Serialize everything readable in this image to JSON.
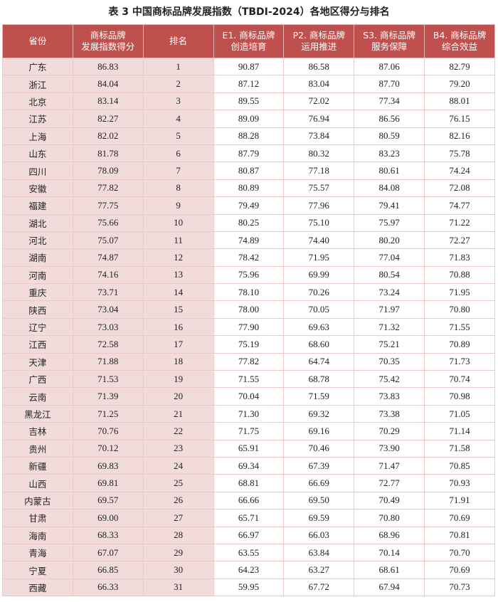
{
  "title": "表 3 中国商标品牌发展指数（TBDI-2024）各地区得分与排名",
  "table": {
    "columns": [
      [
        "省份"
      ],
      [
        "商标品牌",
        "发展指数得分"
      ],
      [
        "排名"
      ],
      [
        "E1. 商标品牌",
        "创造培育"
      ],
      [
        "P2. 商标品牌",
        "运用推进"
      ],
      [
        "S3. 商标品牌",
        "服务保障"
      ],
      [
        "B4. 商标品牌",
        "综合效益"
      ]
    ],
    "rows": [
      [
        "广东",
        "86.83",
        "1",
        "90.87",
        "86.58",
        "87.06",
        "82.79"
      ],
      [
        "浙江",
        "84.04",
        "2",
        "87.12",
        "83.04",
        "87.70",
        "79.20"
      ],
      [
        "北京",
        "83.14",
        "3",
        "89.55",
        "72.02",
        "77.34",
        "88.01"
      ],
      [
        "江苏",
        "82.27",
        "4",
        "89.09",
        "76.94",
        "86.56",
        "76.15"
      ],
      [
        "上海",
        "82.02",
        "5",
        "88.28",
        "73.84",
        "80.59",
        "82.16"
      ],
      [
        "山东",
        "81.78",
        "6",
        "87.79",
        "80.32",
        "83.23",
        "75.78"
      ],
      [
        "四川",
        "78.09",
        "7",
        "80.87",
        "77.18",
        "80.61",
        "74.24"
      ],
      [
        "安徽",
        "77.82",
        "8",
        "80.89",
        "75.57",
        "84.08",
        "72.08"
      ],
      [
        "福建",
        "77.75",
        "9",
        "79.49",
        "77.96",
        "79.41",
        "74.77"
      ],
      [
        "湖北",
        "75.66",
        "10",
        "80.25",
        "75.10",
        "75.97",
        "71.22"
      ],
      [
        "河北",
        "75.07",
        "11",
        "74.89",
        "74.40",
        "80.20",
        "72.27"
      ],
      [
        "湖南",
        "74.87",
        "12",
        "78.42",
        "71.95",
        "77.04",
        "71.83"
      ],
      [
        "河南",
        "74.16",
        "13",
        "75.96",
        "69.99",
        "80.54",
        "70.88"
      ],
      [
        "重庆",
        "73.71",
        "14",
        "78.10",
        "70.26",
        "73.24",
        "71.95"
      ],
      [
        "陕西",
        "73.04",
        "15",
        "78.00",
        "70.05",
        "71.97",
        "70.80"
      ],
      [
        "辽宁",
        "73.03",
        "16",
        "77.90",
        "69.63",
        "71.32",
        "71.55"
      ],
      [
        "江西",
        "72.58",
        "17",
        "75.19",
        "68.60",
        "75.21",
        "70.89"
      ],
      [
        "天津",
        "71.88",
        "18",
        "77.82",
        "64.74",
        "70.35",
        "71.73"
      ],
      [
        "广西",
        "71.53",
        "19",
        "71.55",
        "68.78",
        "75.42",
        "70.74"
      ],
      [
        "云南",
        "71.39",
        "20",
        "70.04",
        "71.59",
        "73.83",
        "70.98"
      ],
      [
        "黑龙江",
        "71.25",
        "21",
        "71.30",
        "69.32",
        "73.38",
        "71.05"
      ],
      [
        "吉林",
        "70.76",
        "22",
        "71.75",
        "69.16",
        "70.29",
        "71.14"
      ],
      [
        "贵州",
        "70.12",
        "23",
        "65.91",
        "70.46",
        "73.90",
        "71.58"
      ],
      [
        "新疆",
        "69.83",
        "24",
        "69.34",
        "67.39",
        "71.47",
        "70.85"
      ],
      [
        "山西",
        "69.81",
        "25",
        "68.81",
        "66.69",
        "72.77",
        "70.93"
      ],
      [
        "内蒙古",
        "69.57",
        "26",
        "66.66",
        "69.50",
        "70.49",
        "71.91"
      ],
      [
        "甘肃",
        "69.00",
        "27",
        "65.71",
        "69.59",
        "70.80",
        "70.69"
      ],
      [
        "海南",
        "68.33",
        "28",
        "66.97",
        "66.03",
        "68.96",
        "70.81"
      ],
      [
        "青海",
        "67.07",
        "29",
        "63.55",
        "63.84",
        "70.14",
        "70.70"
      ],
      [
        "宁夏",
        "66.85",
        "30",
        "64.23",
        "63.27",
        "68.61",
        "70.69"
      ],
      [
        "西藏",
        "66.33",
        "31",
        "59.95",
        "67.72",
        "67.94",
        "70.73"
      ]
    ]
  }
}
